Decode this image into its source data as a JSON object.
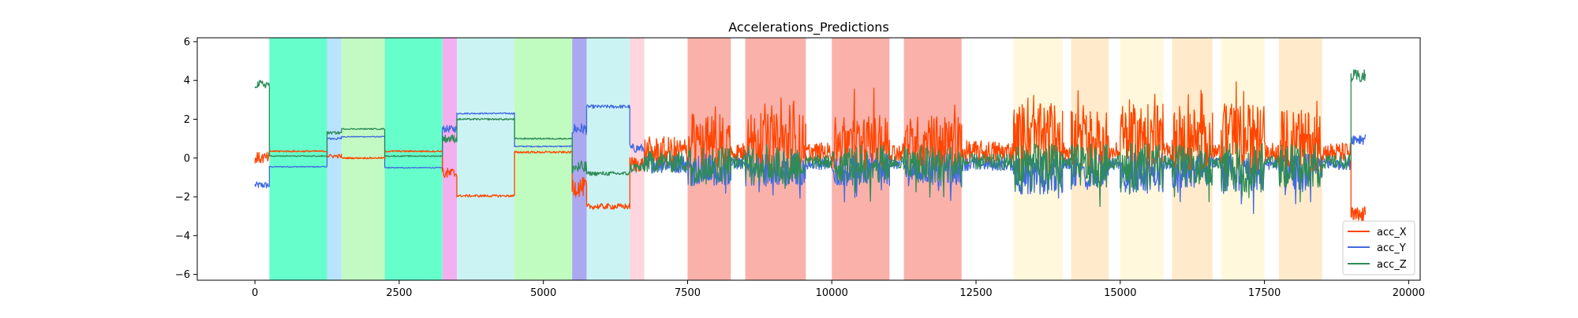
{
  "chart_data": {
    "type": "line",
    "title": "Accelerations_Predictions",
    "xlabel": "",
    "ylabel": "",
    "xlim": [
      -1000,
      20200
    ],
    "ylim": [
      -6.3,
      6.2
    ],
    "x_ticks": [
      0,
      2500,
      5000,
      7500,
      10000,
      12500,
      15000,
      17500,
      20000
    ],
    "x_tick_labels": [
      "0",
      "2500",
      "5000",
      "7500",
      "10000",
      "12500",
      "15000",
      "17500",
      "20000"
    ],
    "y_ticks": [
      -6,
      -4,
      -2,
      0,
      2,
      4,
      6
    ],
    "y_tick_labels": [
      "−6",
      "−4",
      "−2",
      "0",
      "2",
      "4",
      "6"
    ],
    "grid": false,
    "legend_position": "bottom-right",
    "series": [
      {
        "name": "acc_X",
        "color": "#ff4500"
      },
      {
        "name": "acc_Y",
        "color": "#4169e1"
      },
      {
        "name": "acc_Z",
        "color": "#2e8b57"
      }
    ],
    "segments": [
      {
        "x0": 0,
        "x1": 250,
        "color": null,
        "x": 0.0,
        "y": -1.4,
        "z": 3.8,
        "noise": 0.3
      },
      {
        "x0": 250,
        "x1": 1250,
        "color": "#66ffcc",
        "x": 0.35,
        "y": -0.45,
        "z": 0.1,
        "noise": 0.04
      },
      {
        "x0": 1250,
        "x1": 1500,
        "color": "#b8e4ff",
        "x": 0.1,
        "y": 1.0,
        "z": 1.3,
        "noise": 0.1
      },
      {
        "x0": 1500,
        "x1": 2250,
        "color": "#c3fac3",
        "x": 0.0,
        "y": 1.1,
        "z": 1.5,
        "noise": 0.04
      },
      {
        "x0": 2250,
        "x1": 3250,
        "color": "#66ffcc",
        "x": 0.35,
        "y": -0.5,
        "z": 0.1,
        "noise": 0.04
      },
      {
        "x0": 3250,
        "x1": 3500,
        "color": "#f2b0ee",
        "x": -0.8,
        "y": 1.5,
        "z": 1.0,
        "noise": 0.3
      },
      {
        "x0": 3500,
        "x1": 4500,
        "color": "#ccf3f3",
        "x": -1.95,
        "y": 2.3,
        "z": 2.0,
        "noise": 0.06
      },
      {
        "x0": 4500,
        "x1": 5500,
        "color": "#c0fbc0",
        "x": 0.3,
        "y": 0.6,
        "z": 1.0,
        "noise": 0.05
      },
      {
        "x0": 5500,
        "x1": 5750,
        "color": "#aba8ef",
        "x": -1.5,
        "y": 1.5,
        "z": -0.5,
        "noise": 0.5
      },
      {
        "x0": 5750,
        "x1": 6500,
        "color": "#ccf3f3",
        "x": -2.5,
        "y": 2.65,
        "z": -0.8,
        "noise": 0.15
      },
      {
        "x0": 6500,
        "x1": 6750,
        "color": "#ffd6de",
        "x": -0.3,
        "y": 0.5,
        "z": -0.5,
        "noise": 0.4
      },
      {
        "x0": 6750,
        "x1": 7500,
        "color": null,
        "x": 0.3,
        "y": -0.3,
        "z": -0.2,
        "noise": 0.8
      },
      {
        "x0": 7500,
        "x1": 8250,
        "color": "#f9b1aa",
        "x": 0.8,
        "y": -0.6,
        "z": -0.3,
        "noise": 1.4
      },
      {
        "x0": 8250,
        "x1": 8500,
        "color": null,
        "x": 0.3,
        "y": -0.3,
        "z": -0.2,
        "noise": 0.5
      },
      {
        "x0": 8500,
        "x1": 9550,
        "color": "#f9b1aa",
        "x": 0.8,
        "y": -0.6,
        "z": -0.3,
        "noise": 1.5
      },
      {
        "x0": 9550,
        "x1": 10000,
        "color": null,
        "x": 0.3,
        "y": -0.3,
        "z": -0.2,
        "noise": 0.5
      },
      {
        "x0": 10000,
        "x1": 11000,
        "color": "#f9b1aa",
        "x": 0.8,
        "y": -0.6,
        "z": -0.3,
        "noise": 1.4
      },
      {
        "x0": 11000,
        "x1": 11250,
        "color": null,
        "x": 0.3,
        "y": -0.3,
        "z": -0.2,
        "noise": 0.5
      },
      {
        "x0": 11250,
        "x1": 12250,
        "color": "#f9b1aa",
        "x": 0.8,
        "y": -0.6,
        "z": -0.3,
        "noise": 1.4
      },
      {
        "x0": 12250,
        "x1": 13150,
        "color": null,
        "x": 0.3,
        "y": -0.3,
        "z": -0.2,
        "noise": 0.6
      },
      {
        "x0": 13150,
        "x1": 14000,
        "color": "#fff8dc",
        "x": 1.0,
        "y": -0.8,
        "z": -0.5,
        "noise": 1.8
      },
      {
        "x0": 14000,
        "x1": 14150,
        "color": null,
        "x": 0.3,
        "y": -0.3,
        "z": -0.2,
        "noise": 0.5
      },
      {
        "x0": 14150,
        "x1": 14800,
        "color": "#ffeacc",
        "x": 0.9,
        "y": -0.7,
        "z": -0.4,
        "noise": 1.6
      },
      {
        "x0": 14800,
        "x1": 15000,
        "color": null,
        "x": 0.3,
        "y": -0.3,
        "z": -0.2,
        "noise": 0.5
      },
      {
        "x0": 15000,
        "x1": 15750,
        "color": "#fff8dc",
        "x": 1.0,
        "y": -0.8,
        "z": -0.5,
        "noise": 1.8
      },
      {
        "x0": 15750,
        "x1": 15900,
        "color": null,
        "x": 0.3,
        "y": -0.3,
        "z": -0.2,
        "noise": 0.5
      },
      {
        "x0": 15900,
        "x1": 16600,
        "color": "#ffeacc",
        "x": 0.9,
        "y": -0.7,
        "z": -0.4,
        "noise": 1.6
      },
      {
        "x0": 16600,
        "x1": 16750,
        "color": null,
        "x": 0.3,
        "y": -0.3,
        "z": -0.2,
        "noise": 0.5
      },
      {
        "x0": 16750,
        "x1": 17500,
        "color": "#fff8dc",
        "x": 1.0,
        "y": -0.8,
        "z": -0.5,
        "noise": 1.8
      },
      {
        "x0": 17500,
        "x1": 17750,
        "color": null,
        "x": 0.3,
        "y": -0.3,
        "z": -0.2,
        "noise": 0.5
      },
      {
        "x0": 17750,
        "x1": 18500,
        "color": "#ffeacc",
        "x": 0.9,
        "y": -0.7,
        "z": -0.4,
        "noise": 1.6
      },
      {
        "x0": 18500,
        "x1": 19000,
        "color": null,
        "x": 0.3,
        "y": -0.3,
        "z": -0.2,
        "noise": 0.5
      },
      {
        "x0": 19000,
        "x1": 19250,
        "color": null,
        "x": -3.0,
        "y": 1.0,
        "z": 4.2,
        "noise": 0.5
      }
    ]
  }
}
